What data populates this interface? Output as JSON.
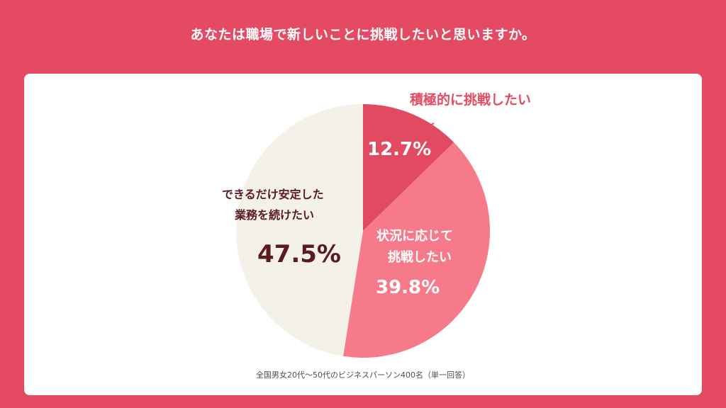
{
  "title": "あなたは職場で新しいことに挑戦したいと思いますか。",
  "note": "全国男女20代〜50代のビジネスパーソン400名（単一回答）",
  "colors": {
    "background": "#e44b62",
    "card": "#ffffff",
    "slice_active": "#e24a62",
    "slice_situational": "#f77a8b",
    "slice_stable": "#f3f1e8",
    "label_dark": "#5a1a1f",
    "label_callout": "#e44b62",
    "label_light": "#ffffff"
  },
  "chart_data": {
    "type": "pie",
    "title": "",
    "slices": [
      {
        "label_lines": [
          "積極的に挑戦したい"
        ],
        "value": 12.7,
        "display": "12.7%"
      },
      {
        "label_lines": [
          "状況に応じて",
          "挑戦したい"
        ],
        "value": 39.8,
        "display": "39.8%"
      },
      {
        "label_lines": [
          "できるだけ安定した",
          "業務を続けたい"
        ],
        "value": 47.5,
        "display": "47.5%"
      }
    ]
  }
}
